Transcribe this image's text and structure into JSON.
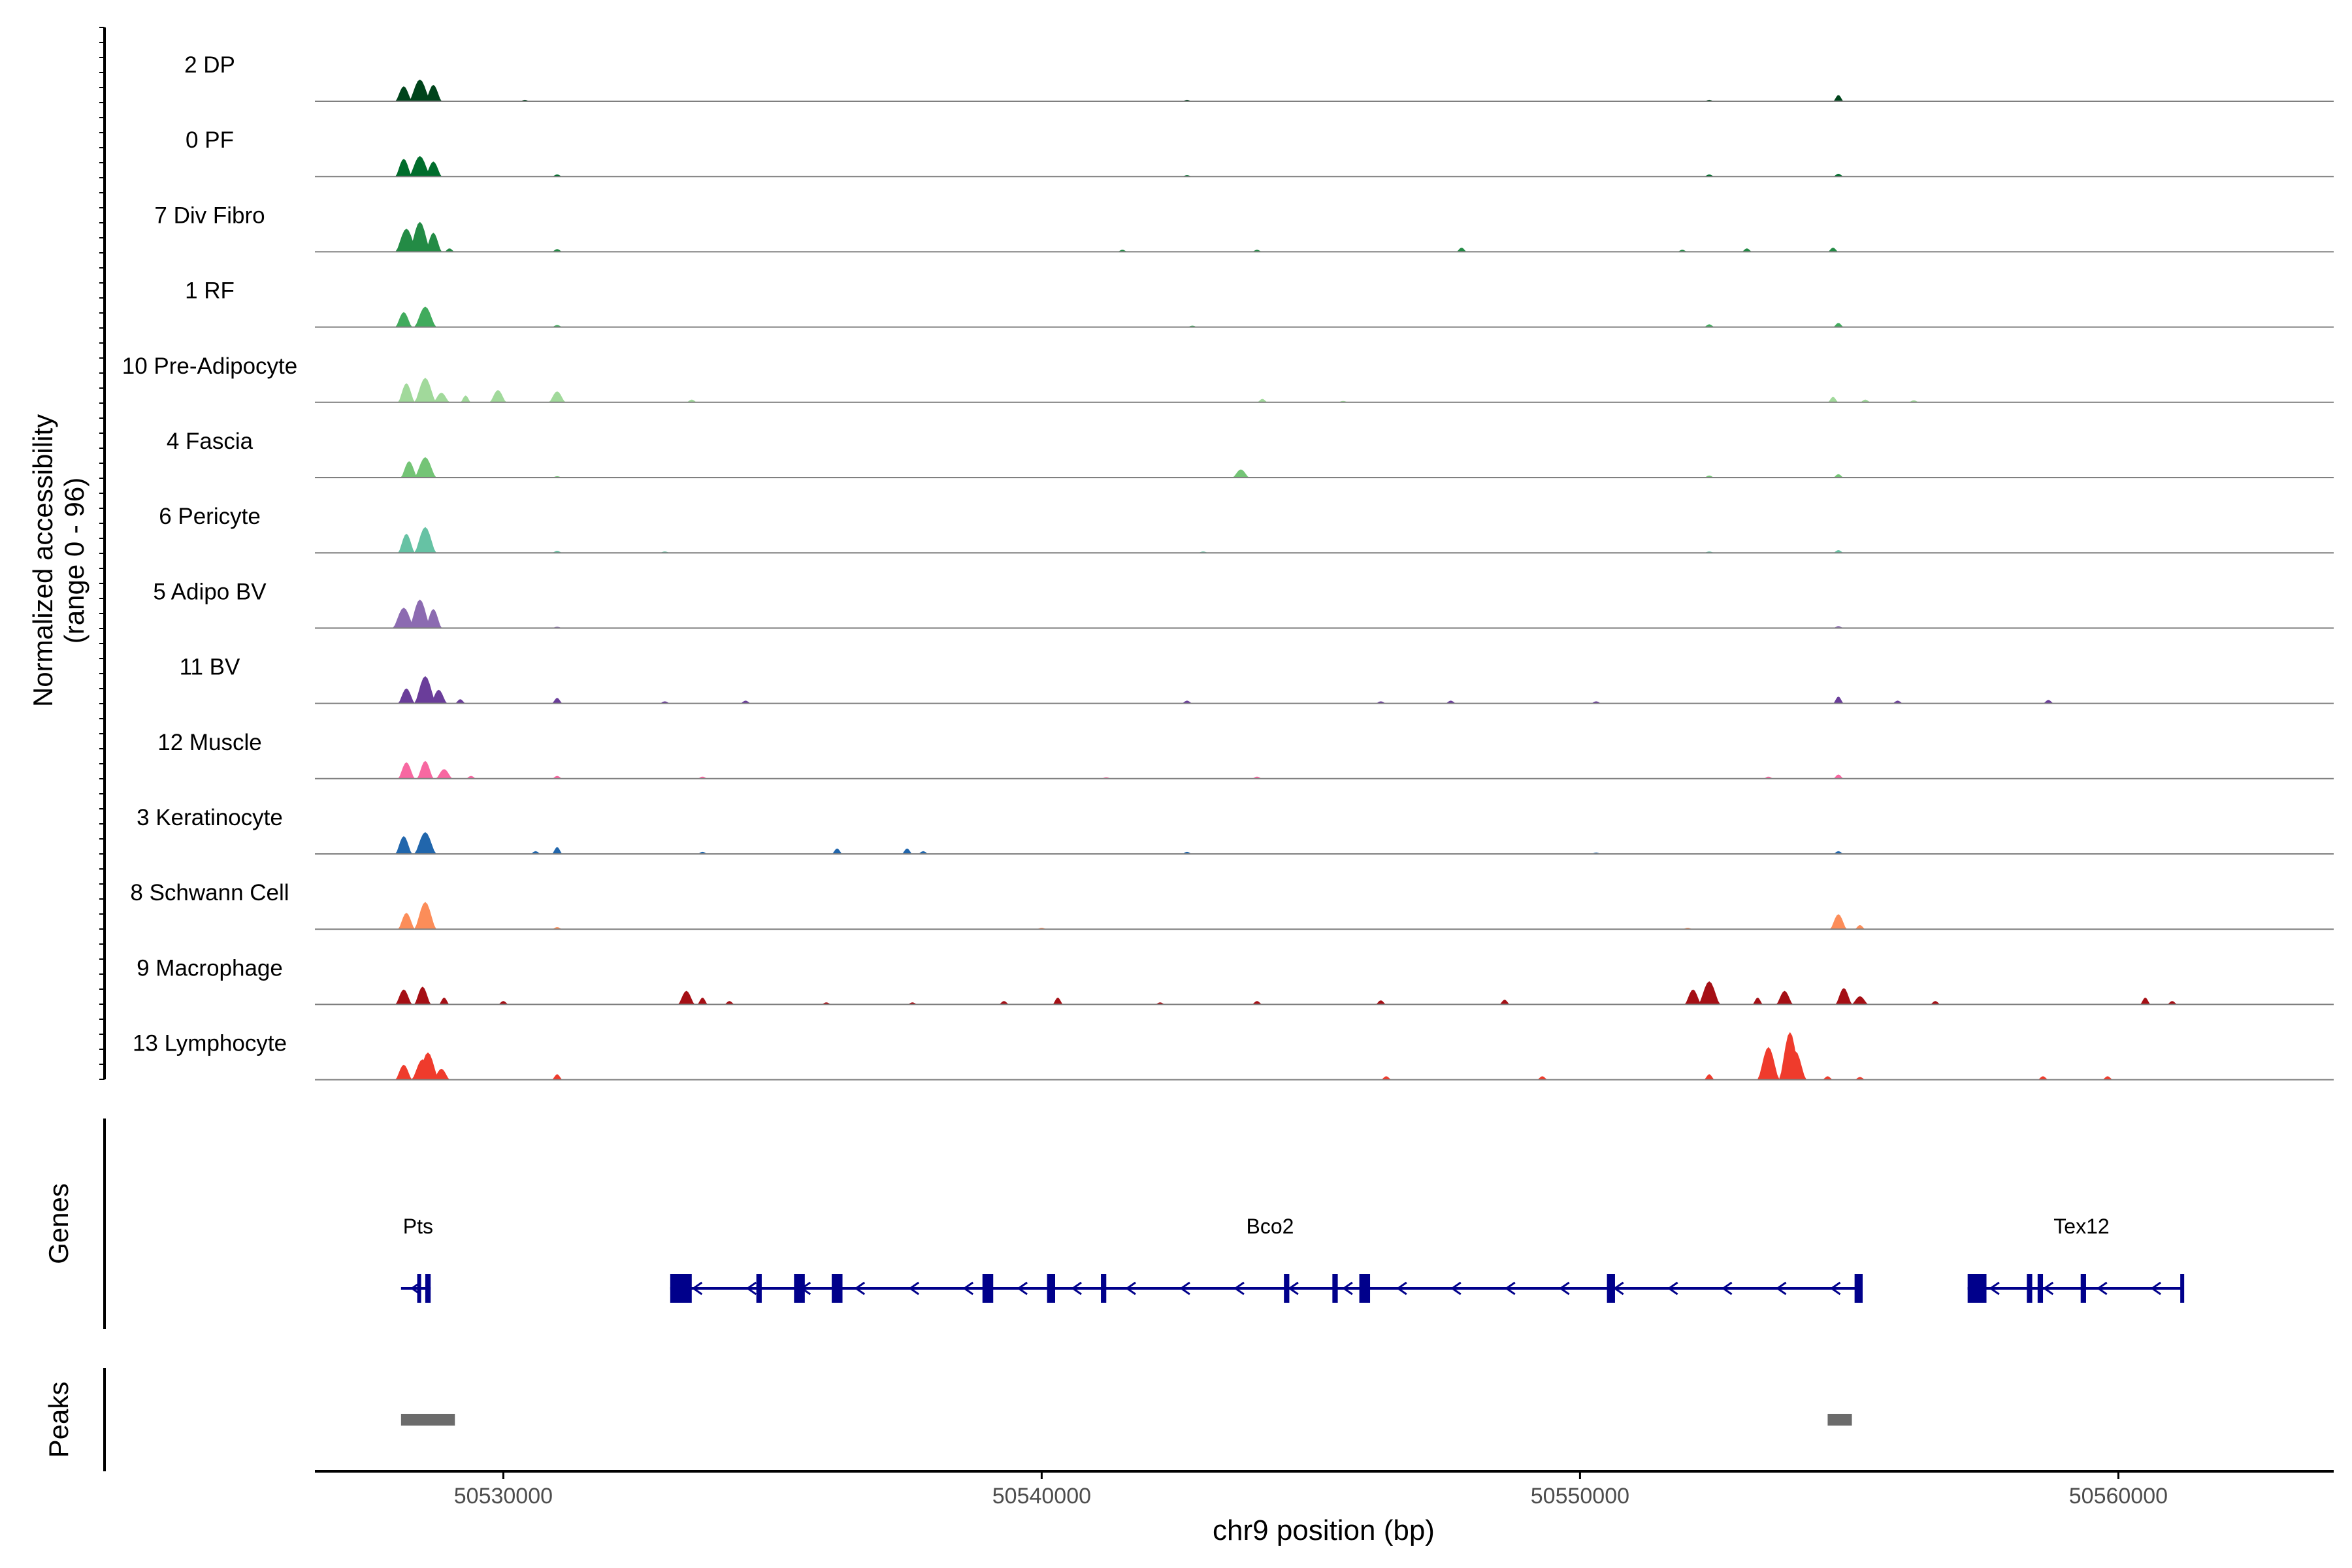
{
  "chart_data": {
    "type": "area",
    "title": "",
    "region": {
      "chrom": "chr9",
      "start": 50526500,
      "end": 50564000
    },
    "xlabel": "chr9 position (bp)",
    "xticks": [
      50530000,
      50540000,
      50550000,
      50560000
    ],
    "xtick_labels": [
      "50530000",
      "50540000",
      "50550000",
      "50560000"
    ],
    "ylabel_line1": "Normalized accessibility",
    "ylabel_line2": "(range 0 - 96)",
    "ylim": [
      0,
      96
    ],
    "genes_panel_label": "Genes",
    "peaks_panel_label": "Peaks",
    "series": [
      {
        "name": "2 DP",
        "color": "#00441b",
        "peaks": [
          [
            50528150,
            22
          ],
          [
            50528450,
            32
          ],
          [
            50528700,
            24
          ],
          [
            50554800,
            9
          ],
          [
            50530400,
            2
          ],
          [
            50542700,
            2
          ],
          [
            50552400,
            2
          ]
        ]
      },
      {
        "name": "0 PF",
        "color": "#006d2c",
        "peaks": [
          [
            50528150,
            26
          ],
          [
            50528450,
            30
          ],
          [
            50528700,
            22
          ],
          [
            50531000,
            3
          ],
          [
            50552400,
            3
          ],
          [
            50554800,
            4
          ],
          [
            50542700,
            2
          ]
        ]
      },
      {
        "name": "7 Div Fibro",
        "color": "#238b45",
        "peaks": [
          [
            50528200,
            34
          ],
          [
            50528450,
            44
          ],
          [
            50528700,
            28
          ],
          [
            50529000,
            5
          ],
          [
            50531000,
            4
          ],
          [
            50541500,
            3
          ],
          [
            50544000,
            3
          ],
          [
            50547800,
            6
          ],
          [
            50551900,
            3
          ],
          [
            50553100,
            5
          ],
          [
            50554700,
            6
          ]
        ]
      },
      {
        "name": "1 RF",
        "color": "#41ab5d",
        "peaks": [
          [
            50528150,
            22
          ],
          [
            50528550,
            30
          ],
          [
            50531000,
            3
          ],
          [
            50542800,
            2
          ],
          [
            50552400,
            4
          ],
          [
            50554800,
            6
          ]
        ]
      },
      {
        "name": "10 Pre-Adipocyte",
        "color": "#a1d99b",
        "peaks": [
          [
            50528200,
            28
          ],
          [
            50528550,
            36
          ],
          [
            50528850,
            14
          ],
          [
            50529300,
            10
          ],
          [
            50529900,
            18
          ],
          [
            50531000,
            16
          ],
          [
            50533500,
            4
          ],
          [
            50544100,
            5
          ],
          [
            50554700,
            8
          ],
          [
            50555300,
            4
          ],
          [
            50556200,
            3
          ],
          [
            50545600,
            2
          ]
        ]
      },
      {
        "name": "4 Fascia",
        "color": "#74c476",
        "peaks": [
          [
            50528250,
            24
          ],
          [
            50528550,
            30
          ],
          [
            50531000,
            2
          ],
          [
            50543700,
            12
          ],
          [
            50552400,
            3
          ],
          [
            50554800,
            5
          ]
        ]
      },
      {
        "name": "6 Pericyte",
        "color": "#66c2a4",
        "peaks": [
          [
            50528200,
            28
          ],
          [
            50528550,
            38
          ],
          [
            50531000,
            3
          ],
          [
            50533000,
            2
          ],
          [
            50552400,
            2
          ],
          [
            50554800,
            4
          ],
          [
            50543000,
            2
          ]
        ]
      },
      {
        "name": "5 Adipo BV",
        "color": "#8c6bb1",
        "peaks": [
          [
            50528150,
            30
          ],
          [
            50528450,
            42
          ],
          [
            50528700,
            28
          ],
          [
            50531000,
            2
          ],
          [
            50554800,
            3
          ]
        ]
      },
      {
        "name": "11 BV",
        "color": "#6a3d9a",
        "peaks": [
          [
            50528200,
            22
          ],
          [
            50528550,
            40
          ],
          [
            50528800,
            20
          ],
          [
            50529200,
            6
          ],
          [
            50531000,
            8
          ],
          [
            50533000,
            3
          ],
          [
            50534500,
            4
          ],
          [
            50542700,
            4
          ],
          [
            50546300,
            3
          ],
          [
            50547600,
            4
          ],
          [
            50554800,
            10
          ],
          [
            50555900,
            4
          ],
          [
            50558700,
            5
          ],
          [
            50550300,
            3
          ]
        ]
      },
      {
        "name": "12 Muscle",
        "color": "#f768a1",
        "peaks": [
          [
            50528200,
            24
          ],
          [
            50528550,
            26
          ],
          [
            50528900,
            14
          ],
          [
            50529400,
            4
          ],
          [
            50531000,
            4
          ],
          [
            50533700,
            3
          ],
          [
            50541200,
            2
          ],
          [
            50544000,
            3
          ],
          [
            50554800,
            6
          ],
          [
            50553500,
            3
          ]
        ]
      },
      {
        "name": "3 Keratinocyte",
        "color": "#2166ac",
        "peaks": [
          [
            50528150,
            26
          ],
          [
            50528550,
            32
          ],
          [
            50531000,
            10
          ],
          [
            50530600,
            4
          ],
          [
            50536200,
            8
          ],
          [
            50537500,
            8
          ],
          [
            50537800,
            4
          ],
          [
            50533700,
            3
          ],
          [
            50542700,
            3
          ],
          [
            50550300,
            2
          ],
          [
            50554800,
            4
          ]
        ]
      },
      {
        "name": "8 Schwann Cell",
        "color": "#fc8d59",
        "peaks": [
          [
            50528200,
            24
          ],
          [
            50528550,
            40
          ],
          [
            50554800,
            22
          ],
          [
            50555200,
            6
          ],
          [
            50531000,
            3
          ],
          [
            50540000,
            2
          ],
          [
            50552000,
            2
          ]
        ]
      },
      {
        "name": "9 Macrophage",
        "color": "#a50f15",
        "peaks": [
          [
            50528150,
            22
          ],
          [
            50528500,
            26
          ],
          [
            50528900,
            10
          ],
          [
            50530000,
            5
          ],
          [
            50533400,
            20
          ],
          [
            50533700,
            10
          ],
          [
            50534200,
            5
          ],
          [
            50539300,
            5
          ],
          [
            50540300,
            10
          ],
          [
            50544000,
            5
          ],
          [
            50546300,
            6
          ],
          [
            50548600,
            7
          ],
          [
            50552100,
            22
          ],
          [
            50552400,
            34
          ],
          [
            50553300,
            10
          ],
          [
            50553800,
            20
          ],
          [
            50554900,
            24
          ],
          [
            50555200,
            12
          ],
          [
            50556600,
            5
          ],
          [
            50560500,
            10
          ],
          [
            50561000,
            5
          ],
          [
            50542200,
            3
          ],
          [
            50536000,
            3
          ],
          [
            50537600,
            3
          ]
        ]
      },
      {
        "name": "13 Lymphocyte",
        "color": "#ef3b2c",
        "peaks": [
          [
            50528150,
            22
          ],
          [
            50528500,
            30
          ],
          [
            50528600,
            40
          ],
          [
            50528850,
            16
          ],
          [
            50531000,
            8
          ],
          [
            50546400,
            5
          ],
          [
            50549300,
            5
          ],
          [
            50552400,
            8
          ],
          [
            50553500,
            48
          ],
          [
            50553900,
            70
          ],
          [
            50554000,
            42
          ],
          [
            50554600,
            5
          ],
          [
            50555200,
            4
          ],
          [
            50558600,
            5
          ],
          [
            50559800,
            5
          ]
        ]
      }
    ],
    "genes": [
      {
        "name": "Pts",
        "start": 50528100,
        "end": 50528650,
        "strand": "-",
        "exons": [
          [
            50528400,
            50528450
          ],
          [
            50528550,
            50528650
          ]
        ]
      },
      {
        "name": "Bco2",
        "start": 50533100,
        "end": 50555250,
        "strand": "-",
        "exons": [
          [
            50533100,
            50533500
          ],
          [
            50534700,
            50534800
          ],
          [
            50535400,
            50535600
          ],
          [
            50536100,
            50536300
          ],
          [
            50538900,
            50539100
          ],
          [
            50540100,
            50540250
          ],
          [
            50541100,
            50541200
          ],
          [
            50544500,
            50544600
          ],
          [
            50545400,
            50545500
          ],
          [
            50545900,
            50546100
          ],
          [
            50550500,
            50550650
          ],
          [
            50555100,
            50555250
          ]
        ]
      },
      {
        "name": "Tex12",
        "start": 50557200,
        "end": 50561200,
        "strand": "-",
        "exons": [
          [
            50557200,
            50557550
          ],
          [
            50558300,
            50558400
          ],
          [
            50558500,
            50558600
          ],
          [
            50559300,
            50559400
          ],
          [
            50561150,
            50561200
          ]
        ]
      }
    ],
    "peaks_regions": [
      [
        50528100,
        50529100
      ],
      [
        50554600,
        50555050
      ]
    ]
  }
}
